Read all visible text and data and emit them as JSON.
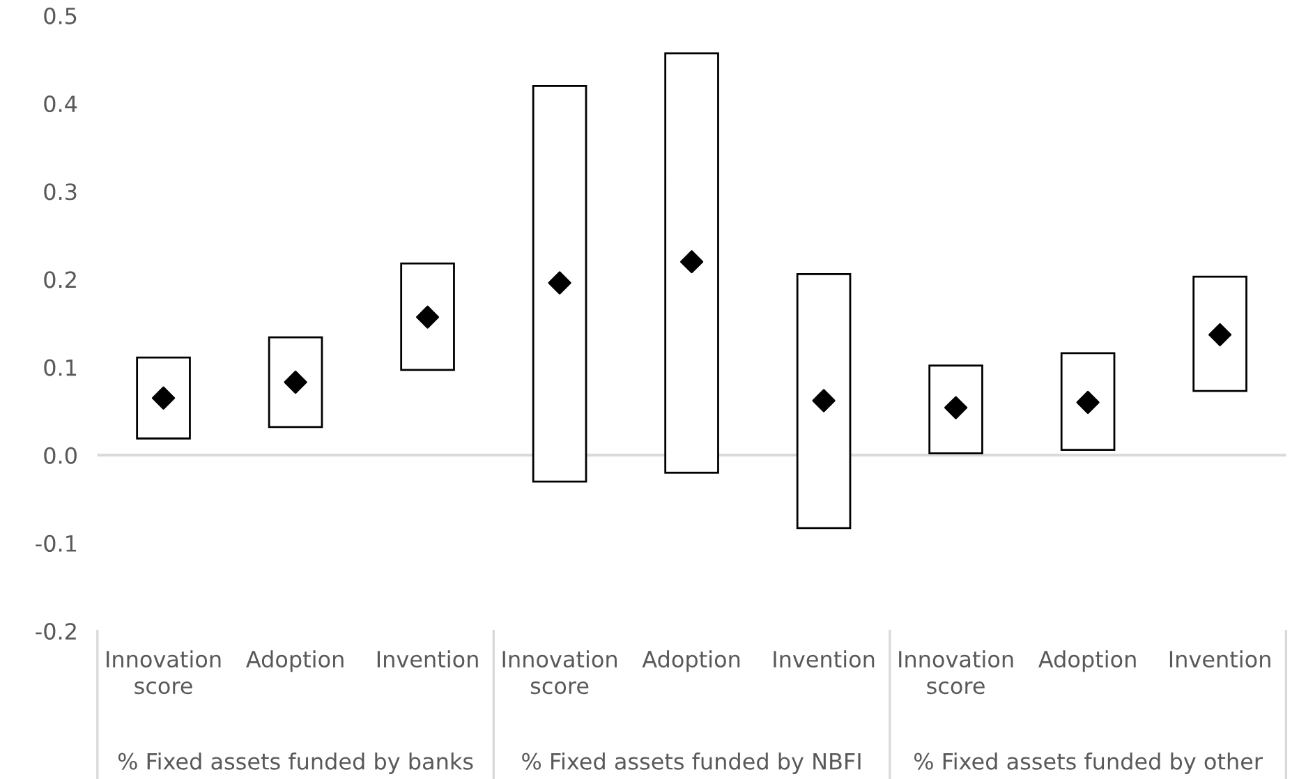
{
  "chart_data": {
    "type": "bar",
    "categories": [
      "Innovation score",
      "Adoption",
      "Invention",
      "Innovation score",
      "Adoption",
      "Invention",
      "Innovation score",
      "Adoption",
      "Invention"
    ],
    "series": [
      {
        "color": "#ffffff",
        "base": [
          0.019,
          0.032,
          0.097,
          -0.03,
          -0.02,
          -0.083,
          0.002,
          0.006,
          0.073
        ],
        "values": [
          0.092,
          0.102,
          0.121,
          0.45,
          0.477,
          0.289,
          0.1,
          0.11,
          0.13
        ]
      },
      {
        "type": "scatter",
        "color": "#000000",
        "marker": "diamond",
        "values": [
          0.065,
          0.083,
          0.157,
          0.196,
          0.22,
          0.062,
          0.054,
          0.06,
          0.137
        ]
      }
    ],
    "ylim": [
      -0.2,
      0.5
    ],
    "yticks": [
      {
        "value": -0.2,
        "label": "-0.2"
      },
      {
        "value": -0.1,
        "label": "-0.1"
      },
      {
        "value": 0,
        "label": "0.0"
      },
      {
        "value": 0.1,
        "label": "0.1"
      },
      {
        "value": 0.2,
        "label": "0.2"
      },
      {
        "value": 0.3,
        "label": "0.3"
      },
      {
        "value": 0.4,
        "label": "0.4"
      },
      {
        "value": 0.5,
        "label": "0.5"
      }
    ],
    "ref_lines": [
      {
        "axis": "y",
        "value": 0,
        "color": "#d9d9d9"
      }
    ],
    "annotations": [
      "% Fixed assets funded by banks",
      "% Fixed assets funded by NBFI",
      "% Fixed assets funded by other"
    ],
    "grid": false,
    "legend": false
  }
}
